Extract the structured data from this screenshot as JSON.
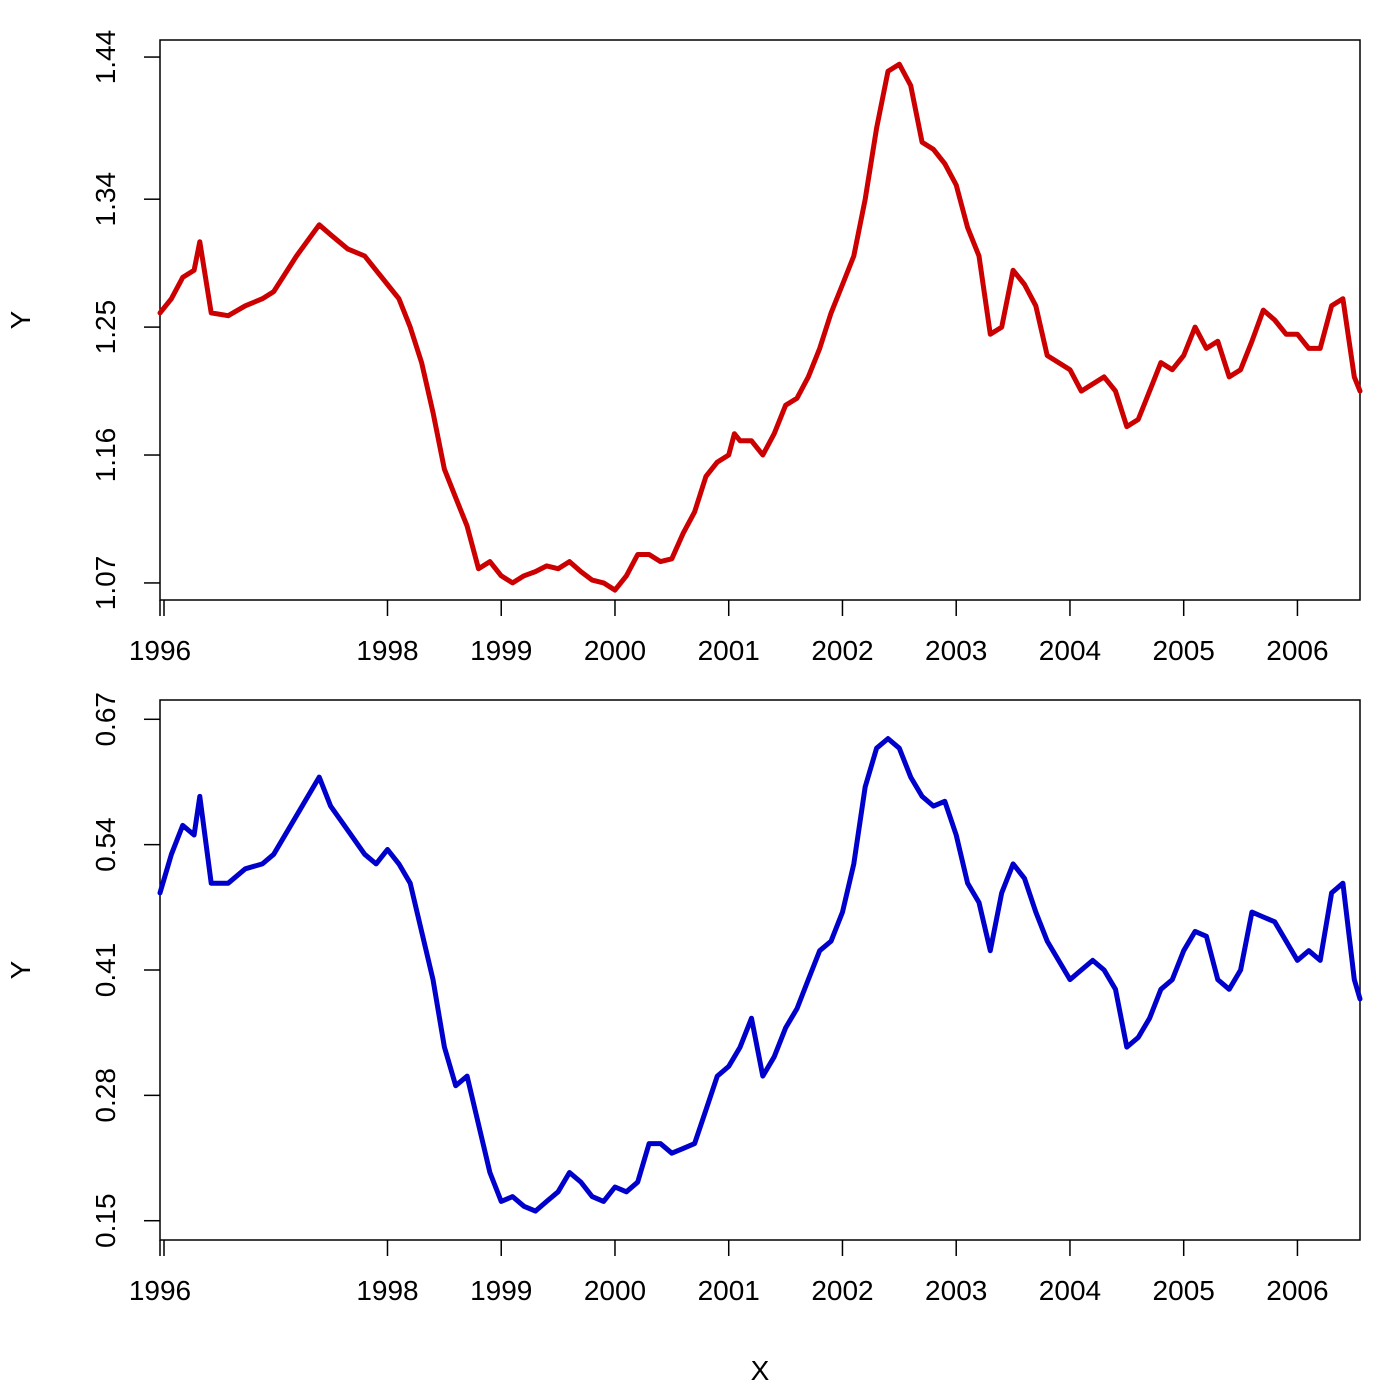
{
  "chart_data": [
    {
      "type": "line",
      "title": "",
      "xlabel": "",
      "ylabel": "Y",
      "xlim": [
        1996.0,
        2006.55
      ],
      "ylim": [
        1.058,
        1.452
      ],
      "yticks": [
        1.07,
        1.16,
        1.25,
        1.34,
        1.44
      ],
      "ytick_labels": [
        "1.07",
        "1.16",
        "1.25",
        "1.34",
        "1.44"
      ],
      "xticks": [
        1996.0,
        1998.0,
        1999.0,
        2000.0,
        2001.0,
        2002.0,
        2003.0,
        2004.0,
        2005.0,
        2006.0
      ],
      "xtick_labels": [
        "1996",
        "1998",
        "1999",
        "2000",
        "2001",
        "2002",
        "2003",
        "2004",
        "2005",
        "2006"
      ],
      "grid": false,
      "series": [
        {
          "color": "#cc0000",
          "x": [
            1996.0,
            1996.1,
            1996.2,
            1996.3,
            1996.35,
            1996.45,
            1996.6,
            1996.75,
            1996.9,
            1997.0,
            1997.2,
            1997.4,
            1997.5,
            1997.65,
            1997.8,
            1997.9,
            1998.0,
            1998.1,
            1998.2,
            1998.3,
            1998.4,
            1998.5,
            1998.6,
            1998.7,
            1998.8,
            1998.9,
            1999.0,
            1999.1,
            1999.2,
            1999.3,
            1999.4,
            1999.5,
            1999.6,
            1999.7,
            1999.8,
            1999.9,
            2000.0,
            2000.1,
            2000.2,
            2000.3,
            2000.4,
            2000.5,
            2000.6,
            2000.7,
            2000.8,
            2000.9,
            2001.0,
            2001.05,
            2001.1,
            2001.2,
            2001.3,
            2001.4,
            2001.5,
            2001.6,
            2001.7,
            2001.8,
            2001.9,
            2002.0,
            2002.1,
            2002.2,
            2002.3,
            2002.4,
            2002.5,
            2002.6,
            2002.7,
            2002.8,
            2002.9,
            2003.0,
            2003.1,
            2003.2,
            2003.3,
            2003.4,
            2003.5,
            2003.6,
            2003.7,
            2003.8,
            2003.9,
            2004.0,
            2004.1,
            2004.2,
            2004.3,
            2004.4,
            2004.5,
            2004.6,
            2004.7,
            2004.8,
            2004.9,
            2005.0,
            2005.1,
            2005.2,
            2005.3,
            2005.4,
            2005.5,
            2005.6,
            2005.7,
            2005.8,
            2005.9,
            2006.0,
            2006.1,
            2006.2,
            2006.3,
            2006.4,
            2006.5,
            2006.55
          ],
          "y": [
            1.26,
            1.27,
            1.285,
            1.29,
            1.31,
            1.26,
            1.258,
            1.265,
            1.27,
            1.275,
            1.3,
            1.322,
            1.315,
            1.305,
            1.3,
            1.29,
            1.28,
            1.27,
            1.25,
            1.225,
            1.19,
            1.15,
            1.13,
            1.11,
            1.08,
            1.085,
            1.075,
            1.07,
            1.075,
            1.078,
            1.082,
            1.08,
            1.085,
            1.078,
            1.072,
            1.07,
            1.065,
            1.075,
            1.09,
            1.09,
            1.085,
            1.087,
            1.105,
            1.12,
            1.145,
            1.155,
            1.16,
            1.175,
            1.17,
            1.17,
            1.16,
            1.175,
            1.195,
            1.2,
            1.215,
            1.235,
            1.26,
            1.28,
            1.3,
            1.34,
            1.39,
            1.43,
            1.435,
            1.42,
            1.38,
            1.375,
            1.365,
            1.35,
            1.32,
            1.3,
            1.245,
            1.25,
            1.29,
            1.28,
            1.265,
            1.23,
            1.225,
            1.22,
            1.205,
            1.21,
            1.215,
            1.205,
            1.18,
            1.185,
            1.205,
            1.225,
            1.22,
            1.23,
            1.25,
            1.235,
            1.24,
            1.215,
            1.22,
            1.24,
            1.262,
            1.255,
            1.245,
            1.245,
            1.235,
            1.235,
            1.265,
            1.27,
            1.215,
            1.205
          ]
        }
      ]
    },
    {
      "type": "line",
      "title": "",
      "xlabel": "X",
      "ylabel": "Y",
      "xlim": [
        1996.0,
        2006.55
      ],
      "ylim": [
        0.13,
        0.69
      ],
      "yticks": [
        0.15,
        0.28,
        0.41,
        0.54,
        0.67
      ],
      "ytick_labels": [
        "0.15",
        "0.28",
        "0.41",
        "0.54",
        "0.67"
      ],
      "xticks": [
        1996.0,
        1998.0,
        1999.0,
        2000.0,
        2001.0,
        2002.0,
        2003.0,
        2004.0,
        2005.0,
        2006.0
      ],
      "xtick_labels": [
        "1996",
        "1998",
        "1999",
        "2000",
        "2001",
        "2002",
        "2003",
        "2004",
        "2005",
        "2006"
      ],
      "grid": false,
      "series": [
        {
          "color": "#0000cc",
          "x": [
            1996.0,
            1996.1,
            1996.2,
            1996.3,
            1996.35,
            1996.45,
            1996.6,
            1996.75,
            1996.9,
            1997.0,
            1997.2,
            1997.4,
            1997.5,
            1997.65,
            1997.8,
            1997.9,
            1998.0,
            1998.1,
            1998.2,
            1998.3,
            1998.4,
            1998.5,
            1998.6,
            1998.7,
            1998.8,
            1998.9,
            1999.0,
            1999.1,
            1999.2,
            1999.3,
            1999.4,
            1999.5,
            1999.6,
            1999.7,
            1999.8,
            1999.9,
            2000.0,
            2000.1,
            2000.2,
            2000.3,
            2000.4,
            2000.5,
            2000.6,
            2000.7,
            2000.8,
            2000.9,
            2001.0,
            2001.05,
            2001.1,
            2001.2,
            2001.3,
            2001.4,
            2001.5,
            2001.6,
            2001.7,
            2001.8,
            2001.9,
            2002.0,
            2002.1,
            2002.2,
            2002.3,
            2002.4,
            2002.5,
            2002.6,
            2002.7,
            2002.8,
            2002.9,
            2003.0,
            2003.1,
            2003.2,
            2003.3,
            2003.4,
            2003.5,
            2003.6,
            2003.7,
            2003.8,
            2003.9,
            2004.0,
            2004.1,
            2004.2,
            2004.3,
            2004.4,
            2004.5,
            2004.6,
            2004.7,
            2004.8,
            2004.9,
            2005.0,
            2005.1,
            2005.2,
            2005.3,
            2005.4,
            2005.5,
            2005.6,
            2005.7,
            2005.8,
            2005.9,
            2006.0,
            2006.1,
            2006.2,
            2006.3,
            2006.4,
            2006.5,
            2006.55
          ],
          "y": [
            0.49,
            0.53,
            0.56,
            0.55,
            0.59,
            0.5,
            0.5,
            0.515,
            0.52,
            0.53,
            0.57,
            0.61,
            0.58,
            0.555,
            0.53,
            0.52,
            0.535,
            0.52,
            0.5,
            0.45,
            0.4,
            0.33,
            0.29,
            0.3,
            0.25,
            0.2,
            0.17,
            0.175,
            0.165,
            0.16,
            0.17,
            0.18,
            0.2,
            0.19,
            0.175,
            0.17,
            0.185,
            0.18,
            0.19,
            0.23,
            0.23,
            0.22,
            0.225,
            0.23,
            0.265,
            0.3,
            0.31,
            0.32,
            0.33,
            0.36,
            0.3,
            0.32,
            0.35,
            0.37,
            0.4,
            0.43,
            0.44,
            0.47,
            0.52,
            0.6,
            0.64,
            0.65,
            0.64,
            0.61,
            0.59,
            0.58,
            0.585,
            0.55,
            0.5,
            0.48,
            0.43,
            0.49,
            0.52,
            0.505,
            0.47,
            0.44,
            0.42,
            0.4,
            0.41,
            0.42,
            0.41,
            0.39,
            0.33,
            0.34,
            0.36,
            0.39,
            0.4,
            0.43,
            0.45,
            0.445,
            0.4,
            0.39,
            0.41,
            0.47,
            0.465,
            0.46,
            0.44,
            0.42,
            0.43,
            0.42,
            0.49,
            0.5,
            0.4,
            0.38
          ]
        }
      ]
    }
  ]
}
